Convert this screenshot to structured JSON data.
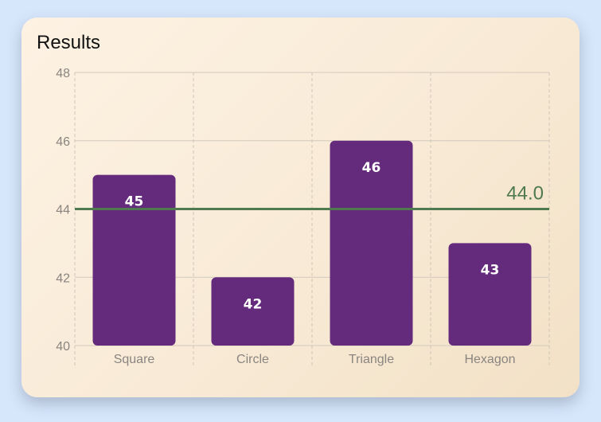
{
  "title": "Results",
  "chart_data": {
    "type": "bar",
    "title": "Results",
    "categories": [
      "Square",
      "Circle",
      "Triangle",
      "Hexagon"
    ],
    "values": [
      45,
      42,
      46,
      43
    ],
    "data_labels": [
      "45",
      "42",
      "46",
      "43"
    ],
    "ylim": [
      40,
      48
    ],
    "yticks": [
      40,
      42,
      44,
      46,
      48
    ],
    "grid": true,
    "reference_line": {
      "value": 44.0,
      "label": "44.0",
      "color": "#4f7a4f"
    },
    "bar_color": "#642a7c",
    "xlabel": "",
    "ylabel": ""
  }
}
